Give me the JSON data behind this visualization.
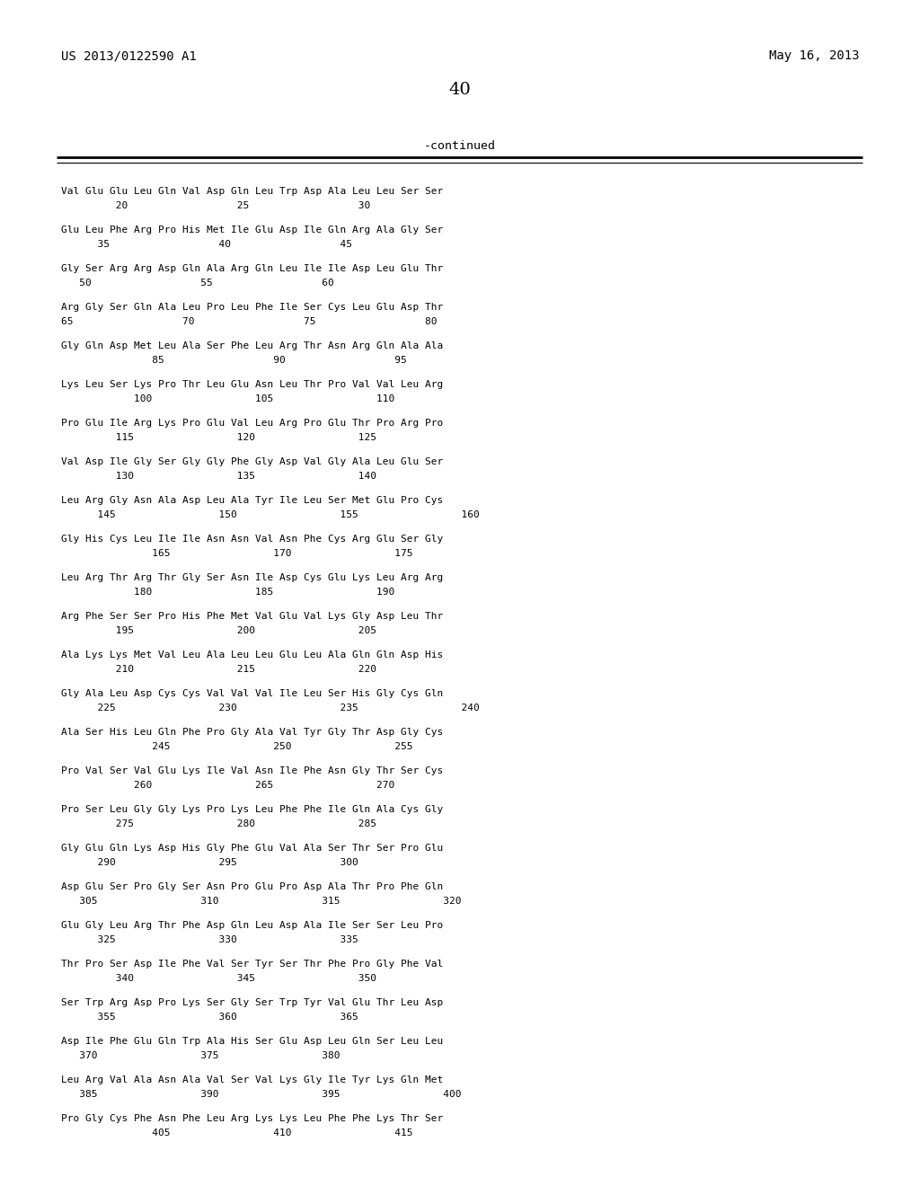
{
  "header_left": "US 2013/0122590 A1",
  "header_right": "May 16, 2013",
  "page_number": "40",
  "continued_label": "-continued",
  "background_color": "#ffffff",
  "text_color": "#000000",
  "sequence_lines": [
    [
      "Val Glu Glu Leu Gln Val Asp Gln Leu Trp Asp Ala Leu Leu Ser Ser",
      "         20                  25                  30"
    ],
    [
      "Glu Leu Phe Arg Pro His Met Ile Glu Asp Ile Gln Arg Ala Gly Ser",
      "      35                  40                  45"
    ],
    [
      "Gly Ser Arg Arg Asp Gln Ala Arg Gln Leu Ile Ile Asp Leu Glu Thr",
      "   50                  55                  60"
    ],
    [
      "Arg Gly Ser Gln Ala Leu Pro Leu Phe Ile Ser Cys Leu Glu Asp Thr",
      "65                  70                  75                  80"
    ],
    [
      "Gly Gln Asp Met Leu Ala Ser Phe Leu Arg Thr Asn Arg Gln Ala Ala",
      "               85                  90                  95"
    ],
    [
      "Lys Leu Ser Lys Pro Thr Leu Glu Asn Leu Thr Pro Val Val Leu Arg",
      "            100                 105                 110"
    ],
    [
      "Pro Glu Ile Arg Lys Pro Glu Val Leu Arg Pro Glu Thr Pro Arg Pro",
      "         115                 120                 125"
    ],
    [
      "Val Asp Ile Gly Ser Gly Gly Phe Gly Asp Val Gly Ala Leu Glu Ser",
      "         130                 135                 140"
    ],
    [
      "Leu Arg Gly Asn Ala Asp Leu Ala Tyr Ile Leu Ser Met Glu Pro Cys",
      "      145                 150                 155                 160"
    ],
    [
      "Gly His Cys Leu Ile Ile Asn Asn Val Asn Phe Cys Arg Glu Ser Gly",
      "               165                 170                 175"
    ],
    [
      "Leu Arg Thr Arg Thr Gly Ser Asn Ile Asp Cys Glu Lys Leu Arg Arg",
      "            180                 185                 190"
    ],
    [
      "Arg Phe Ser Ser Pro His Phe Met Val Glu Val Lys Gly Asp Leu Thr",
      "         195                 200                 205"
    ],
    [
      "Ala Lys Lys Met Val Leu Ala Leu Leu Glu Leu Ala Gln Gln Asp His",
      "         210                 215                 220"
    ],
    [
      "Gly Ala Leu Asp Cys Cys Val Val Val Ile Leu Ser His Gly Cys Gln",
      "      225                 230                 235                 240"
    ],
    [
      "Ala Ser His Leu Gln Phe Pro Gly Ala Val Tyr Gly Thr Asp Gly Cys",
      "               245                 250                 255"
    ],
    [
      "Pro Val Ser Val Glu Lys Ile Val Asn Ile Phe Asn Gly Thr Ser Cys",
      "            260                 265                 270"
    ],
    [
      "Pro Ser Leu Gly Gly Lys Pro Lys Leu Phe Phe Ile Gln Ala Cys Gly",
      "         275                 280                 285"
    ],
    [
      "Gly Glu Gln Lys Asp His Gly Phe Glu Val Ala Ser Thr Ser Pro Glu",
      "      290                 295                 300"
    ],
    [
      "Asp Glu Ser Pro Gly Ser Asn Pro Glu Pro Asp Ala Thr Pro Phe Gln",
      "   305                 310                 315                 320"
    ],
    [
      "Glu Gly Leu Arg Thr Phe Asp Gln Leu Asp Ala Ile Ser Ser Leu Pro",
      "      325                 330                 335"
    ],
    [
      "Thr Pro Ser Asp Ile Phe Val Ser Tyr Ser Thr Phe Pro Gly Phe Val",
      "         340                 345                 350"
    ],
    [
      "Ser Trp Arg Asp Pro Lys Ser Gly Ser Trp Tyr Val Glu Thr Leu Asp",
      "      355                 360                 365"
    ],
    [
      "Asp Ile Phe Glu Gln Trp Ala His Ser Glu Asp Leu Gln Ser Leu Leu",
      "   370                 375                 380"
    ],
    [
      "Leu Arg Val Ala Asn Ala Val Ser Val Lys Gly Ile Tyr Lys Gln Met",
      "   385                 390                 395                 400"
    ],
    [
      "Pro Gly Cys Phe Asn Phe Leu Arg Lys Lys Leu Phe Phe Lys Thr Ser",
      "               405                 410                 415"
    ]
  ]
}
